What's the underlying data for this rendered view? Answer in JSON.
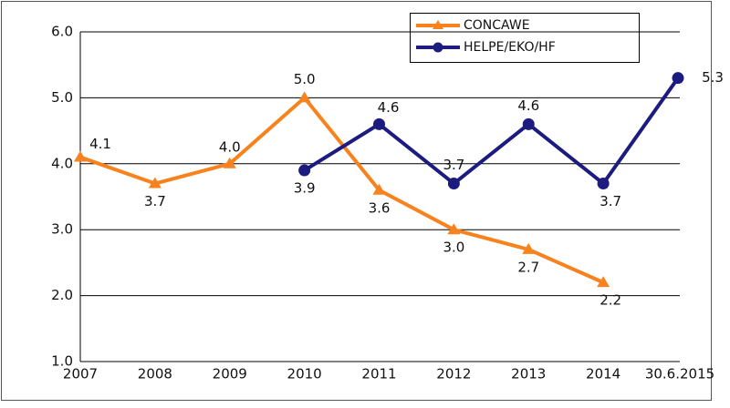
{
  "chart_data": {
    "type": "line",
    "categories": [
      "2007",
      "2008",
      "2009",
      "2010",
      "2011",
      "2012",
      "2013",
      "2014",
      "30.6.2015"
    ],
    "series": [
      {
        "name": "CONCAWE",
        "color": "#f7821e",
        "marker": "triangle",
        "values": [
          4.1,
          3.7,
          4.0,
          5.0,
          3.6,
          3.0,
          2.7,
          2.2,
          null
        ],
        "value_labels": [
          "4.1",
          "3.7",
          "4.0",
          "5.0",
          "3.6",
          "3.0",
          "2.7",
          "2.2",
          null
        ]
      },
      {
        "name": "HELPE/EKO/HF",
        "color": "#1c1c80",
        "marker": "circle",
        "values": [
          null,
          null,
          null,
          3.9,
          4.6,
          3.7,
          4.6,
          3.7,
          5.3
        ],
        "value_labels": [
          null,
          null,
          null,
          "3.9",
          "4.6",
          "3.7",
          "4.6",
          "3.7",
          "5.3"
        ]
      }
    ],
    "ylim": [
      1.0,
      6.0
    ],
    "yticks": [
      {
        "value": 1,
        "label": "1.0"
      },
      {
        "value": 2,
        "label": "2.0"
      },
      {
        "value": 3,
        "label": "3.0"
      },
      {
        "value": 4,
        "label": "4.0"
      },
      {
        "value": 5,
        "label": "5.0"
      },
      {
        "value": 6,
        "label": "6.0"
      }
    ],
    "grid": true
  }
}
